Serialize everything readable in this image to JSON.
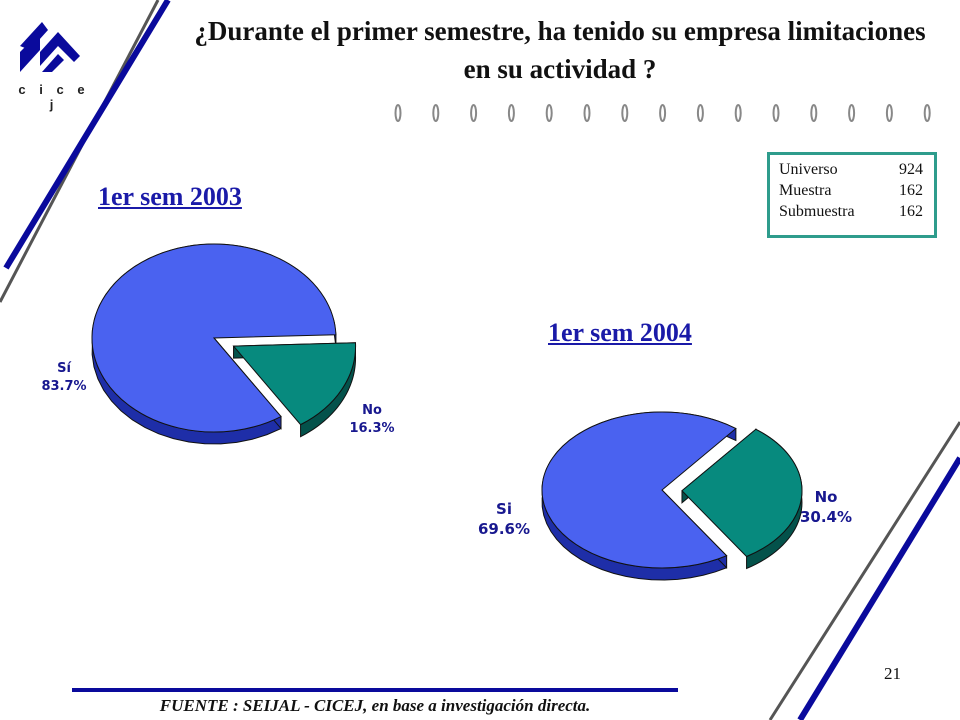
{
  "logo": {
    "name": "logo-icon",
    "text": "c i c e j"
  },
  "title": "¿Durante el primer semestre, ha tenido su empresa limitaciones en su actividad ?",
  "stats": {
    "rows": [
      {
        "label": "Universo",
        "value": "924"
      },
      {
        "label": "Muestra",
        "value": "162"
      },
      {
        "label": "Submuestra",
        "value": "162"
      }
    ]
  },
  "colors": {
    "si": "#4a62f0",
    "si_side": "#1e2ea8",
    "no": "#078a7e",
    "no_side": "#04524b",
    "accent": "#0a0a9c"
  },
  "chart_data": [
    {
      "type": "pie",
      "title": "1er sem 2003",
      "labels": [
        "Sí",
        "No"
      ],
      "label_display": [
        "Sí\n83.7%",
        "No\n16.3%"
      ],
      "values": [
        83.7,
        16.3
      ],
      "units": "%",
      "exploded": "No"
    },
    {
      "type": "pie",
      "title": "1er sem 2004",
      "labels": [
        "Si",
        "No"
      ],
      "label_display": [
        "Si\n69.6%",
        "No\n30.4%"
      ],
      "values": [
        69.6,
        30.4
      ],
      "units": "%",
      "exploded": "No"
    }
  ],
  "footer": "FUENTE : SEIJAL - CICEJ, en base a investigación directa.",
  "page_number": "21"
}
